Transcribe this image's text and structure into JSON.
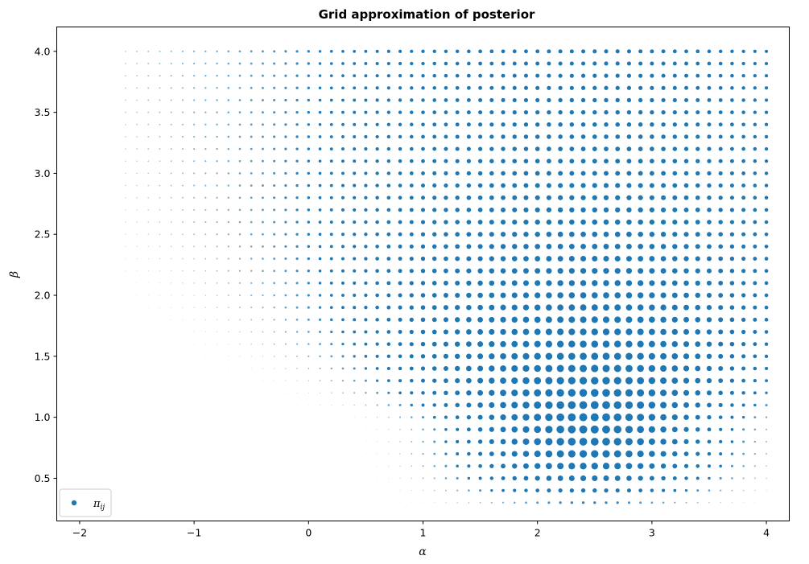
{
  "chart_data": {
    "type": "scatter",
    "title": "Grid approximation of posterior",
    "xlabel": "α",
    "ylabel": "β",
    "xlim": [
      -2.2,
      4.2
    ],
    "ylim": [
      0.15,
      4.2
    ],
    "xticks": [
      -2,
      -1,
      0,
      1,
      2,
      3,
      4
    ],
    "xtick_labels": [
      "−2",
      "−1",
      "0",
      "1",
      "2",
      "3",
      "4"
    ],
    "yticks": [
      0.5,
      1.0,
      1.5,
      2.0,
      2.5,
      3.0,
      3.5,
      4.0
    ],
    "ytick_labels": [
      "0.5",
      "1.0",
      "1.5",
      "2.0",
      "2.5",
      "3.0",
      "3.5",
      "4.0"
    ],
    "grid": false,
    "legend_position": "lower-left",
    "color": "#1f77b4",
    "series": [
      {
        "name": "π_ij",
        "grid": {
          "alpha_range": [
            -1.6,
            4.0
          ],
          "beta_range": [
            0.3,
            4.0
          ],
          "n_alpha": 57,
          "n_beta": 38
        },
        "posterior_mode": {
          "alpha": 2.45,
          "beta": 0.95
        }
      }
    ]
  },
  "legend": {
    "label_main": "π",
    "label_sub": "ij"
  }
}
